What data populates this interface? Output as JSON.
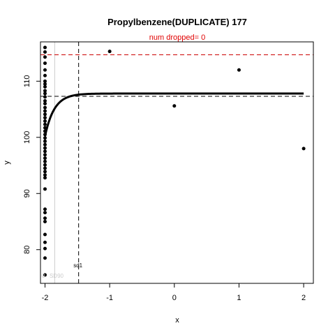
{
  "chart_data": {
    "type": "scatter",
    "title": "Propylbenzene(DUPLICATE) 177",
    "subtitle": "num dropped= 0",
    "xlabel": "x",
    "ylabel": "y",
    "xlim": [
      -2.07,
      2.15
    ],
    "ylim": [
      74.0,
      117.0
    ],
    "xticks": [
      -2,
      -1,
      0,
      1,
      2
    ],
    "yticks": [
      80,
      90,
      100,
      110
    ],
    "points": {
      "x_cluster": -2,
      "y_cluster": [
        116.0,
        115.2,
        114.3,
        113.2,
        112.0,
        111.0,
        110.0,
        109.5,
        109.0,
        108.3,
        107.8,
        107.2,
        106.5,
        106.0,
        105.3,
        104.7,
        104.1,
        103.5,
        102.9,
        102.3,
        101.7,
        101.1,
        100.5,
        99.9,
        99.3,
        98.7,
        98.1,
        97.5,
        96.9,
        96.3,
        95.7,
        95.1,
        94.5,
        93.9,
        93.3,
        92.8,
        90.8,
        87.2,
        86.6,
        85.6,
        85.0,
        82.7,
        81.3,
        80.2,
        78.5,
        75.5
      ],
      "others": [
        {
          "x": -1.0,
          "y": 115.3
        },
        {
          "x": 0.0,
          "y": 105.6
        },
        {
          "x": 1.0,
          "y": 112.0
        },
        {
          "x": 2.0,
          "y": 98.0
        }
      ]
    },
    "curve": {
      "asymptote": 107.8,
      "start_x": -2.0,
      "start_y": 100.2,
      "rate": 7.0
    },
    "reference_lines": {
      "h_black_y": 107.3,
      "h_red_y": 114.7,
      "v_black_x": -1.48,
      "v_gray_x": -1.85
    },
    "annotations": {
      "sd1": "sd1",
      "sd90": "SD90",
      "faint_left": "0"
    },
    "colors": {
      "points": "#000000",
      "curve": "#000000",
      "red_line": "#cc0000",
      "gray_line": "#cccccc"
    }
  }
}
